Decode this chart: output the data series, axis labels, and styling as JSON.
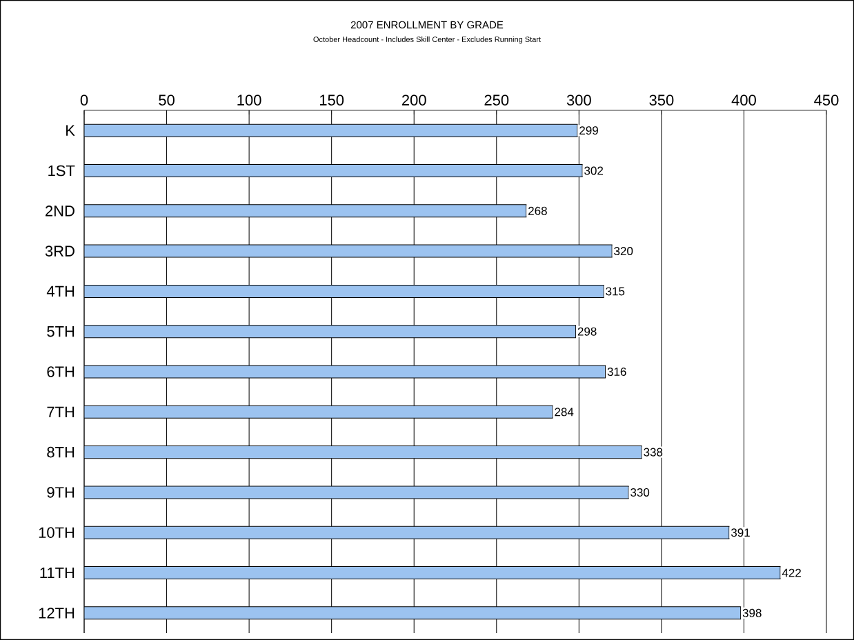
{
  "chart_data": {
    "type": "bar",
    "orientation": "horizontal",
    "title": "2007 ENROLLMENT BY GRADE",
    "subtitle": "October Headcount - Includes Skill Center - Excludes Running Start",
    "categories": [
      "K",
      "1ST",
      "2ND",
      "3RD",
      "4TH",
      "5TH",
      "6TH",
      "7TH",
      "8TH",
      "9TH",
      "10TH",
      "11TH",
      "12TH"
    ],
    "values": [
      299,
      302,
      268,
      320,
      315,
      298,
      316,
      284,
      338,
      330,
      391,
      422,
      398
    ],
    "color": "#9cc3f0",
    "xlim": [
      0,
      450
    ],
    "xticks": [
      0,
      50,
      100,
      150,
      200,
      250,
      300,
      350,
      400,
      450
    ],
    "grid": "x",
    "data_labels": true
  }
}
